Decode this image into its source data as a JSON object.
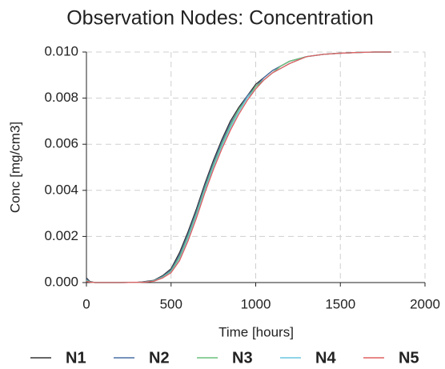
{
  "chart_data": {
    "type": "line",
    "title": "Observation Nodes: Concentration",
    "xlabel": "Time [hours]",
    "ylabel": "Conc [mg/cm3]",
    "x": [
      0,
      20,
      50,
      100,
      200,
      300,
      350,
      400,
      450,
      500,
      550,
      600,
      650,
      700,
      750,
      800,
      850,
      900,
      950,
      1000,
      1050,
      1100,
      1150,
      1200,
      1300,
      1400,
      1500,
      1600,
      1700,
      1800
    ],
    "series": [
      {
        "name": "N1",
        "color": "#333333",
        "values": [
          0.0002,
          5e-05,
          0,
          0,
          0,
          1e-05,
          5e-05,
          0.0001,
          0.0003,
          0.0006,
          0.0013,
          0.0022,
          0.0032,
          0.0043,
          0.0053,
          0.0062,
          0.007,
          0.0076,
          0.0081,
          0.0086,
          0.0089,
          0.0092,
          0.0094,
          0.0096,
          0.0098,
          0.0099,
          0.00995,
          0.00998,
          0.01,
          0.01
        ]
      },
      {
        "name": "N2",
        "color": "#4a6fa5",
        "values": [
          0.00015,
          4e-05,
          0,
          0,
          0,
          1e-05,
          4e-05,
          9e-05,
          0.00027,
          0.00055,
          0.0012,
          0.0021,
          0.0031,
          0.0042,
          0.0052,
          0.0061,
          0.0069,
          0.0075,
          0.0081,
          0.0085,
          0.0089,
          0.0092,
          0.0094,
          0.0096,
          0.0098,
          0.0099,
          0.00995,
          0.00998,
          0.01,
          0.01
        ]
      },
      {
        "name": "N3",
        "color": "#6cc07a",
        "values": [
          0.0001,
          3e-05,
          0,
          0,
          0,
          1e-05,
          3e-05,
          8e-05,
          0.00024,
          0.0005,
          0.0011,
          0.002,
          0.003,
          0.0041,
          0.0051,
          0.006,
          0.0068,
          0.0075,
          0.008,
          0.0085,
          0.0088,
          0.0091,
          0.0094,
          0.0096,
          0.0098,
          0.0099,
          0.00995,
          0.00998,
          0.01,
          0.01
        ]
      },
      {
        "name": "N4",
        "color": "#6cc6e0",
        "values": [
          8e-05,
          2e-05,
          0,
          0,
          0,
          1e-05,
          3e-05,
          7e-05,
          0.00022,
          0.00046,
          0.001,
          0.0019,
          0.0029,
          0.004,
          0.005,
          0.0059,
          0.0067,
          0.0074,
          0.008,
          0.0084,
          0.0088,
          0.0091,
          0.0093,
          0.0095,
          0.0098,
          0.0099,
          0.00995,
          0.00998,
          0.01,
          0.01
        ]
      },
      {
        "name": "N5",
        "color": "#e06060",
        "values": [
          5e-05,
          2e-05,
          0,
          0,
          0,
          1e-05,
          2e-05,
          6e-05,
          0.0002,
          0.00043,
          0.00095,
          0.0018,
          0.0028,
          0.0039,
          0.0049,
          0.0058,
          0.0066,
          0.0073,
          0.0079,
          0.0084,
          0.0088,
          0.0091,
          0.0093,
          0.0095,
          0.0098,
          0.0099,
          0.00995,
          0.00998,
          0.01,
          0.01
        ]
      }
    ],
    "xlim": [
      0,
      2000
    ],
    "xticks": [
      0,
      500,
      1000,
      1500,
      2000
    ],
    "ylim": [
      0,
      0.01
    ],
    "yticks": [
      {
        "value": 0,
        "label": "0.000"
      },
      {
        "value": 0.002,
        "label": "0.002"
      },
      {
        "value": 0.004,
        "label": "0.004"
      },
      {
        "value": 0.006,
        "label": "0.006"
      },
      {
        "value": 0.008,
        "label": "0.008"
      },
      {
        "value": 0.01,
        "label": "0.010"
      }
    ],
    "grid": true
  }
}
